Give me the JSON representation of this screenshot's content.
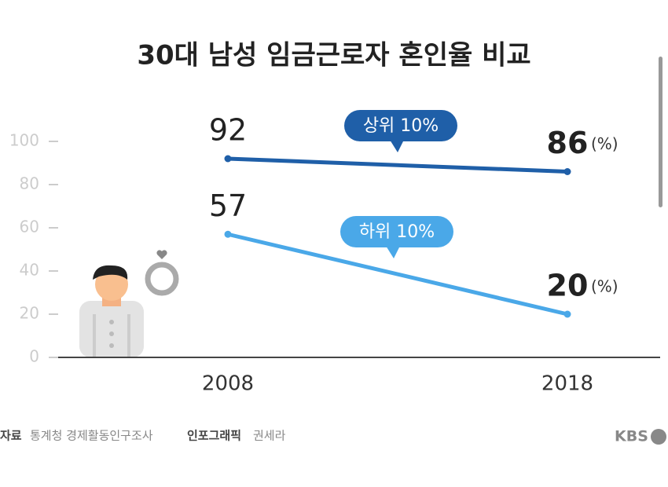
{
  "chart_data": {
    "type": "line",
    "title": "30대 남성 임금근로자 혼인율 비교",
    "categories": [
      "2008",
      "2018"
    ],
    "series": [
      {
        "name": "상위 10%",
        "color": "#1f5fa8",
        "values": [
          92,
          86
        ]
      },
      {
        "name": "하위 10%",
        "color": "#4aa8e8",
        "values": [
          57,
          20
        ]
      }
    ],
    "unit": "(%)",
    "ylim": [
      0,
      100
    ],
    "yticks": [
      0,
      20,
      40,
      60,
      80,
      100
    ]
  },
  "footer": {
    "source_label": "자료",
    "source": "통계청 경제활동인구조사",
    "credit_label": "인포그래픽",
    "credit": "권세라",
    "logo": "KBS"
  }
}
